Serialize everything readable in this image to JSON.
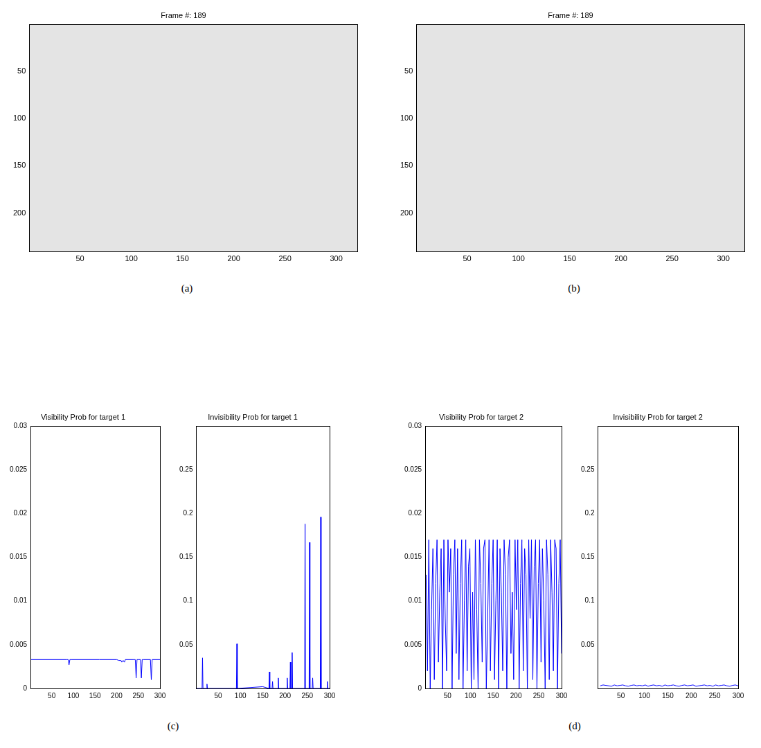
{
  "chart_data": [
    {
      "type": "image",
      "panel": "(a)",
      "title": "Frame #: 189",
      "xlim": [
        0.5,
        320.5
      ],
      "ylim": [
        0.5,
        240.5
      ],
      "xticks": [
        50,
        100,
        150,
        200,
        250,
        300
      ],
      "yticks": [
        50,
        100,
        150,
        200
      ],
      "grid": false
    },
    {
      "type": "image",
      "panel": "(b)",
      "title": "Frame #: 189",
      "xlim": [
        0.5,
        320.5
      ],
      "ylim": [
        0.5,
        240.5
      ],
      "xticks": [
        50,
        100,
        150,
        200,
        250,
        300
      ],
      "yticks": [
        50,
        100,
        150,
        200
      ],
      "grid": false
    },
    {
      "type": "line",
      "panel": "(c)",
      "title": "Visibility Prob for target 1",
      "x": [
        1,
        85,
        88,
        90,
        92,
        95,
        160,
        200,
        205,
        210,
        212,
        215,
        218,
        220,
        240,
        243,
        245,
        247,
        250,
        255,
        257,
        259,
        262,
        278,
        280,
        282,
        284,
        300
      ],
      "series": [
        {
          "color": "#0000ff",
          "values": [
            0.0033,
            0.0033,
            0.0033,
            0.0027,
            0.0033,
            0.0033,
            0.0033,
            0.0033,
            0.0032,
            0.0032,
            0.003,
            0.0032,
            0.003,
            0.0033,
            0.0033,
            0.0033,
            0.0012,
            0.0033,
            0.0033,
            0.0033,
            0.0012,
            0.0033,
            0.0033,
            0.0033,
            0.001,
            0.0033,
            0.0033,
            0.0033
          ]
        }
      ],
      "xlim": [
        1,
        300
      ],
      "ylim": [
        0,
        0.03
      ],
      "xticks": [
        50,
        100,
        150,
        200,
        250,
        300
      ],
      "yticks": [
        0,
        0.005,
        0.01,
        0.015,
        0.02,
        0.025,
        0.03
      ],
      "grid": false
    },
    {
      "type": "line",
      "title": "Invisibility Prob for target 1",
      "x": [
        1,
        14,
        15,
        16,
        24,
        25,
        26,
        91,
        92,
        93,
        150,
        164,
        165,
        166,
        171,
        172,
        173,
        184,
        185,
        186,
        204,
        205,
        206,
        211,
        212,
        213,
        215,
        216,
        217,
        244,
        245,
        246,
        254,
        255,
        256,
        261,
        262,
        263,
        279,
        280,
        281,
        294,
        295,
        296,
        300
      ],
      "series": [
        {
          "color": "#0000ff",
          "values": [
            0,
            0,
            0.035,
            0,
            0,
            0.005,
            0,
            0,
            0.051,
            0,
            0.002,
            0,
            0.019,
            0,
            0,
            0.008,
            0,
            0,
            0.012,
            0,
            0,
            0.012,
            0,
            0,
            0.03,
            0,
            0,
            0.041,
            0,
            0,
            0.188,
            0,
            0,
            0.167,
            0,
            0,
            0.012,
            0,
            0,
            0.196,
            0,
            0,
            0.008,
            0,
            0
          ]
        }
      ],
      "xlim": [
        1,
        300
      ],
      "ylim": [
        0,
        0.3
      ],
      "xticks": [
        50,
        100,
        150,
        200,
        250,
        300
      ],
      "yticks": [
        0.05,
        0.1,
        0.15,
        0.2,
        0.25
      ],
      "grid": false
    },
    {
      "type": "line",
      "panel": "(d)",
      "title": "Visibility Prob for target 2",
      "x": [
        3,
        6,
        9,
        12,
        15,
        18,
        21,
        24,
        27,
        30,
        33,
        36,
        39,
        42,
        45,
        48,
        51,
        54,
        57,
        60,
        63,
        66,
        69,
        72,
        75,
        78,
        81,
        84,
        87,
        90,
        93,
        96,
        99,
        102,
        105,
        108,
        111,
        114,
        117,
        120,
        123,
        126,
        129,
        132,
        135,
        138,
        141,
        144,
        147,
        150,
        153,
        156,
        159,
        162,
        165,
        168,
        171,
        174,
        177,
        180,
        183,
        186,
        189,
        192,
        195,
        198,
        201,
        204,
        207,
        210,
        213,
        216,
        219,
        222,
        225,
        228,
        231,
        234,
        237,
        240,
        243,
        246,
        249,
        252,
        255,
        258,
        261,
        264,
        267,
        270,
        273,
        276,
        279,
        282,
        285,
        288,
        291,
        294,
        297,
        300
      ],
      "series": [
        {
          "color": "#0000ff",
          "values": [
            0.013,
            0.002,
            0.017,
            0,
            0.009,
            0.016,
            0.001,
            0.012,
            0.017,
            0.003,
            0.011,
            0.016,
            0,
            0.017,
            0.008,
            0.002,
            0.017,
            0.011,
            0.016,
            0,
            0.013,
            0.017,
            0.004,
            0.016,
            0.001,
            0.012,
            0.017,
            0,
            0.01,
            0.017,
            0.002,
            0.014,
            0.016,
            0,
            0.011,
            0.001,
            0.017,
            0.009,
            0,
            0.017,
            0.012,
            0.003,
            0.016,
            0.017,
            0,
            0.008,
            0.017,
            0.002,
            0.012,
            0.017,
            0.001,
            0.01,
            0.017,
            0,
            0.016,
            0.011,
            0.002,
            0.017,
            0.013,
            0,
            0.015,
            0.017,
            0.004,
            0.011,
            0.001,
            0.017,
            0.009,
            0.017,
            0,
            0.012,
            0.017,
            0.002,
            0.016,
            0.013,
            0,
            0.017,
            0.008,
            0.017,
            0.001,
            0.014,
            0.017,
            0,
            0.012,
            0.017,
            0.003,
            0.016,
            0.01,
            0,
            0.017,
            0.013,
            0.001,
            0.017,
            0.011,
            0.002,
            0.017,
            0.016,
            0,
            0.012,
            0.017,
            0.004
          ]
        }
      ],
      "xlim": [
        1,
        300
      ],
      "ylim": [
        0,
        0.03
      ],
      "xticks": [
        50,
        100,
        150,
        200,
        250,
        300
      ],
      "yticks": [
        0,
        0.005,
        0.01,
        0.015,
        0.02,
        0.025,
        0.03
      ],
      "grid": false
    },
    {
      "type": "line",
      "title": "Invisibility Prob for target 2",
      "x": [
        6,
        12,
        18,
        24,
        30,
        36,
        42,
        48,
        54,
        60,
        66,
        72,
        78,
        84,
        90,
        96,
        102,
        108,
        114,
        120,
        126,
        132,
        138,
        144,
        150,
        156,
        162,
        168,
        174,
        180,
        186,
        192,
        198,
        204,
        210,
        216,
        222,
        228,
        234,
        240,
        246,
        252,
        258,
        264,
        270,
        276,
        282,
        288,
        294,
        300
      ],
      "series": [
        {
          "color": "#0000ff",
          "values": [
            0.003,
            0.004,
            0.0035,
            0.003,
            0.0025,
            0.004,
            0.003,
            0.0035,
            0.004,
            0.003,
            0.0025,
            0.0035,
            0.004,
            0.003,
            0.0035,
            0.003,
            0.004,
            0.0025,
            0.0035,
            0.004,
            0.003,
            0.0035,
            0.0025,
            0.004,
            0.003,
            0.0035,
            0.004,
            0.003,
            0.0025,
            0.0035,
            0.004,
            0.003,
            0.0035,
            0.004,
            0.0025,
            0.003,
            0.0035,
            0.004,
            0.003,
            0.0035,
            0.0025,
            0.004,
            0.003,
            0.0035,
            0.004,
            0.003,
            0.0025,
            0.0035,
            0.004,
            0.003
          ]
        }
      ],
      "xlim": [
        1,
        300
      ],
      "ylim": [
        0,
        0.3
      ],
      "xticks": [
        50,
        100,
        150,
        200,
        250,
        300
      ],
      "yticks": [
        0.05,
        0.1,
        0.15,
        0.2,
        0.25
      ],
      "grid": false
    }
  ]
}
